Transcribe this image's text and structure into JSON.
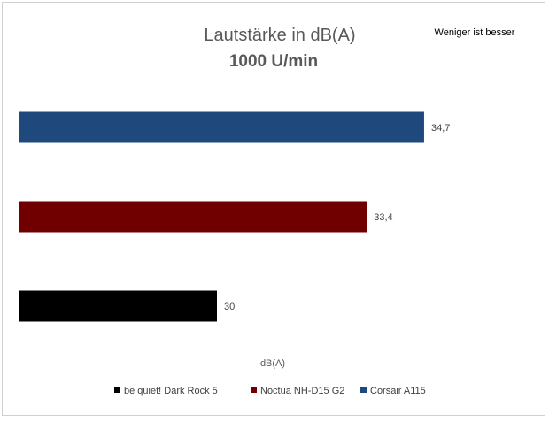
{
  "chart_data": {
    "type": "bar",
    "orientation": "horizontal",
    "title": "Lautstärke in dB(A)",
    "subtitle": "1000 U/min",
    "note": "Weniger ist besser",
    "xlabel": "dB(A)",
    "ylabel": "",
    "xlim": [
      25.5,
      36.75
    ],
    "grid": false,
    "legend_position": "bottom",
    "series": [
      {
        "name": "be quiet! Dark Rock 5",
        "value": 30,
        "label": "30",
        "color": "#000000"
      },
      {
        "name": "Noctua NH-D15 G2",
        "value": 33.4,
        "label": "33,4",
        "color": "#700000"
      },
      {
        "name": "Corsair A115",
        "value": 34.7,
        "label": "34,7",
        "color": "#1f497d"
      }
    ]
  }
}
